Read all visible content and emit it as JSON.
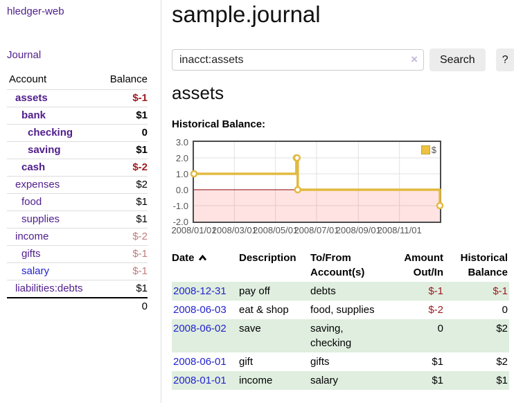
{
  "app": {
    "title": "hledger-web"
  },
  "sidebar": {
    "nav": {
      "journal_label": "Journal"
    },
    "accounts": {
      "headers": {
        "account": "Account",
        "balance": "Balance"
      },
      "rows": [
        {
          "name": "assets",
          "balance": "$-1"
        },
        {
          "name": "bank",
          "balance": "$1"
        },
        {
          "name": "checking",
          "balance": "0"
        },
        {
          "name": "saving",
          "balance": "$1"
        },
        {
          "name": "cash",
          "balance": "$-2"
        },
        {
          "name": "expenses",
          "balance": "$2"
        },
        {
          "name": "food",
          "balance": "$1"
        },
        {
          "name": "supplies",
          "balance": "$1"
        },
        {
          "name": "income",
          "balance": "$-2"
        },
        {
          "name": "gifts",
          "balance": "$-1"
        },
        {
          "name": "salary",
          "balance": "$-1"
        },
        {
          "name": "liabilities:debts",
          "balance": "$1"
        }
      ],
      "total": "0"
    }
  },
  "main": {
    "title": "sample.journal",
    "search": {
      "value": "inacct:assets",
      "clear_icon": "×",
      "button_label": "Search",
      "help_label": "?"
    },
    "account_heading": "assets"
  },
  "chart_data": {
    "type": "line",
    "step": true,
    "title": "Historical Balance:",
    "legend": "$",
    "xlim": [
      "2008-01-01",
      "2008-12-31"
    ],
    "ylim": [
      -2,
      3
    ],
    "y_ticks": [
      3,
      2,
      1,
      0,
      -1,
      -2
    ],
    "y_tick_labels": [
      "3.0",
      "2.0",
      "1.0",
      "0.0",
      "-1.0",
      "-2.0"
    ],
    "x_ticks": [
      "2008-01-01",
      "2008-03-01",
      "2008-05-01",
      "2008-07-01",
      "2008-09-01",
      "2008-11-01"
    ],
    "x_tick_labels": [
      "2008/01/01",
      "2008/03/01",
      "2008/05/01",
      "2008/07/01",
      "2008/09/01",
      "2008/11/01"
    ],
    "series": [
      {
        "name": "$",
        "points": [
          [
            "2008-01-01",
            1
          ],
          [
            "2008-06-01",
            2
          ],
          [
            "2008-06-02",
            2
          ],
          [
            "2008-06-03",
            0
          ],
          [
            "2008-12-31",
            -1
          ]
        ]
      }
    ],
    "line_color": "#e2b93f",
    "point_fill": "#ffffff",
    "zero_line_color": "#8b0000",
    "negative_region_fill": "rgba(255,0,0,0.11)",
    "grid_color": "#e2e2e2"
  },
  "register": {
    "headers": {
      "date": "Date",
      "description": "Description",
      "accounts": "To/From Account(s)",
      "amount": "Amount Out/In",
      "balance": "Historical Balance"
    },
    "rows": [
      {
        "date": "2008-12-31",
        "description": "pay off",
        "accounts": "debts",
        "amount": "$-1",
        "balance": "$-1"
      },
      {
        "date": "2008-06-03",
        "description": "eat & shop",
        "accounts": "food, supplies",
        "amount": "$-2",
        "balance": "0"
      },
      {
        "date": "2008-06-02",
        "description": "save",
        "accounts": "saving, checking",
        "amount": "0",
        "balance": "$2"
      },
      {
        "date": "2008-06-01",
        "description": "gift",
        "accounts": "gifts",
        "amount": "$1",
        "balance": "$2"
      },
      {
        "date": "2008-01-01",
        "description": "income",
        "accounts": "salary",
        "amount": "$1",
        "balance": "$1"
      }
    ]
  }
}
